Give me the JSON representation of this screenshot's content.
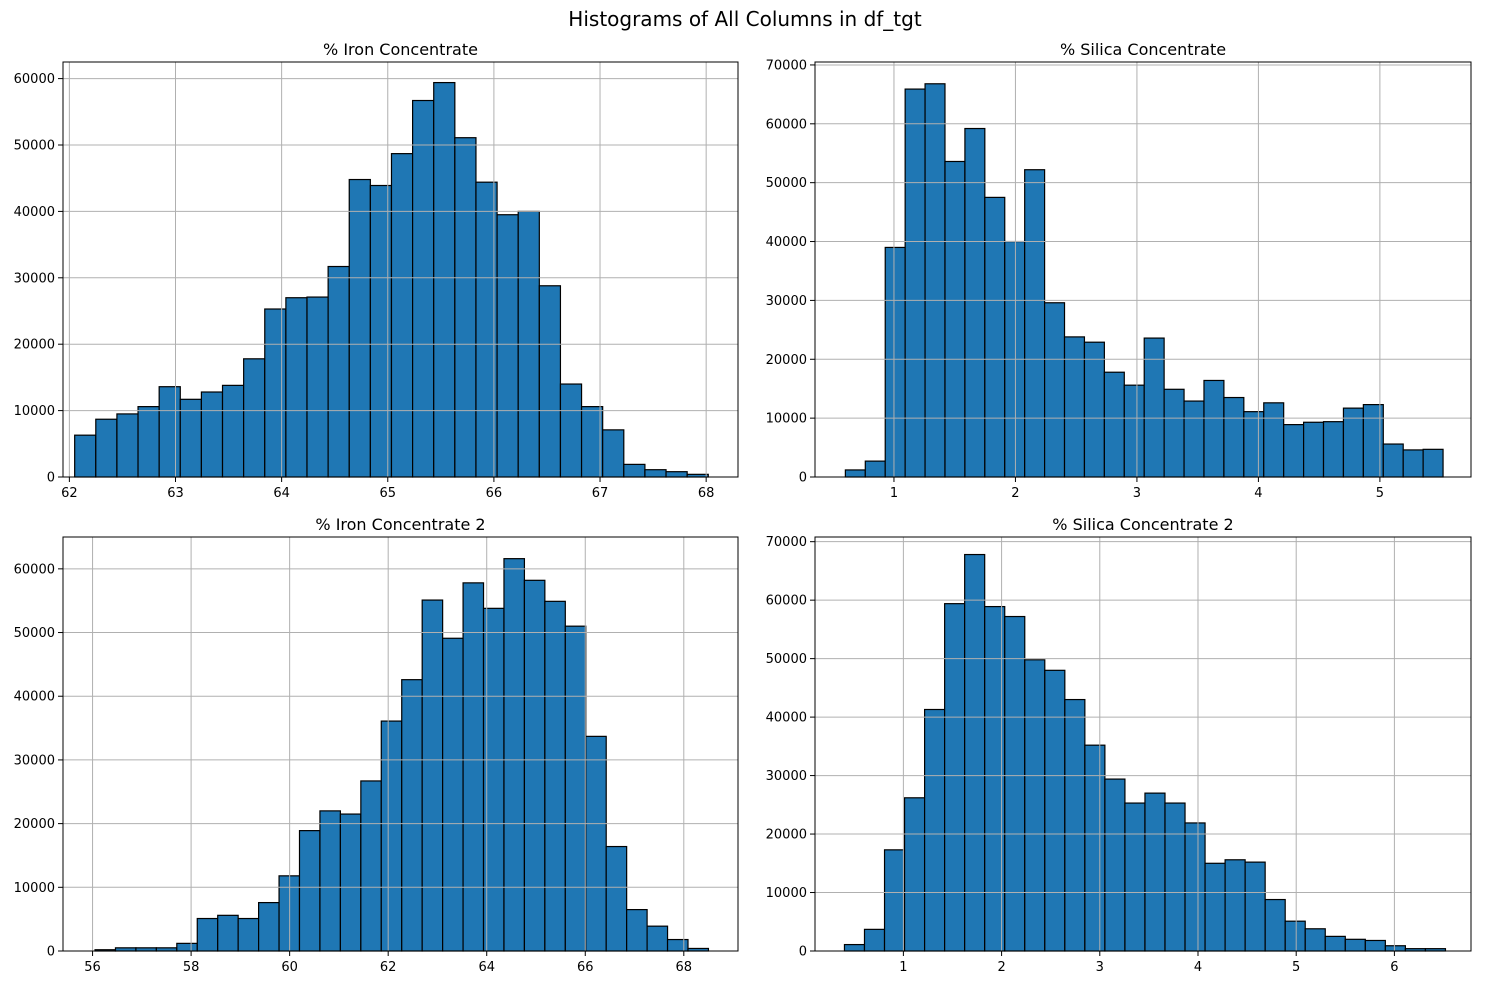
{
  "figure": {
    "suptitle": "Histograms of All Columns in df_tgt"
  },
  "colors": {
    "bar_fill": "#1f77b4",
    "bar_edge": "#000000",
    "grid": "#b0b0b0"
  },
  "chart_data": [
    {
      "type": "bar",
      "title": "% Iron Concentrate",
      "xlabel": "",
      "ylabel": "",
      "xlim": [
        61.94,
        68.3
      ],
      "ylim": [
        0,
        62500
      ],
      "xticks": [
        62,
        63,
        64,
        65,
        66,
        67,
        68
      ],
      "yticks": [
        0,
        10000,
        20000,
        30000,
        40000,
        50000,
        60000
      ],
      "grid": true,
      "bin_start": 62.05,
      "bin_width": 0.199,
      "counts": [
        6300,
        8700,
        9500,
        10600,
        13600,
        11700,
        12800,
        13800,
        17800,
        25300,
        27000,
        27100,
        31700,
        44800,
        43900,
        48700,
        56700,
        59400,
        51100,
        44400,
        39500,
        40000,
        28800,
        14000,
        10600,
        7100,
        1900,
        1100,
        800,
        400
      ]
    },
    {
      "type": "bar",
      "title": "% Silica Concentrate",
      "xlabel": "",
      "ylabel": "",
      "xlim": [
        0.35,
        5.75
      ],
      "ylim": [
        0,
        70500
      ],
      "xticks": [
        1,
        2,
        3,
        4,
        5
      ],
      "yticks": [
        0,
        10000,
        20000,
        30000,
        40000,
        50000,
        60000,
        70000
      ],
      "grid": true,
      "bin_start": 0.6,
      "bin_width": 0.164,
      "counts": [
        1200,
        2700,
        39000,
        65900,
        66800,
        53600,
        59200,
        47500,
        40000,
        52200,
        29600,
        23800,
        22900,
        17800,
        15600,
        23600,
        14900,
        12900,
        16400,
        13500,
        11100,
        12600,
        8900,
        9300,
        9400,
        11700,
        12300,
        5600,
        4600,
        4700
      ]
    },
    {
      "type": "bar",
      "title": "% Iron Concentrate 2",
      "xlabel": "",
      "ylabel": "",
      "xlim": [
        55.4,
        69.1
      ],
      "ylim": [
        0,
        65000
      ],
      "xticks": [
        56,
        58,
        60,
        62,
        64,
        66,
        68
      ],
      "yticks": [
        0,
        10000,
        20000,
        30000,
        40000,
        50000,
        60000
      ],
      "grid": true,
      "bin_start": 56.05,
      "bin_width": 0.415,
      "counts": [
        200,
        500,
        500,
        500,
        1200,
        5100,
        5600,
        5100,
        7600,
        11800,
        18900,
        22000,
        21500,
        26700,
        36100,
        42600,
        55100,
        49100,
        57800,
        53800,
        61600,
        58200,
        54900,
        51000,
        33700,
        16400,
        6500,
        3900,
        1800,
        400
      ]
    },
    {
      "type": "bar",
      "title": "% Silica Concentrate 2",
      "xlabel": "",
      "ylabel": "",
      "xlim": [
        0.1,
        6.78
      ],
      "ylim": [
        0,
        70800
      ],
      "xticks": [
        1,
        2,
        3,
        4,
        5,
        6
      ],
      "yticks": [
        0,
        10000,
        20000,
        30000,
        40000,
        50000,
        60000,
        70000
      ],
      "grid": true,
      "bin_start": 0.4,
      "bin_width": 0.204,
      "counts": [
        1100,
        3700,
        17300,
        26200,
        41300,
        59400,
        67800,
        58900,
        57200,
        49800,
        48000,
        43000,
        35200,
        29400,
        25300,
        27000,
        25300,
        21900,
        15000,
        15600,
        15200,
        8800,
        5100,
        3800,
        2500,
        2000,
        1800,
        900,
        400,
        400
      ]
    }
  ]
}
